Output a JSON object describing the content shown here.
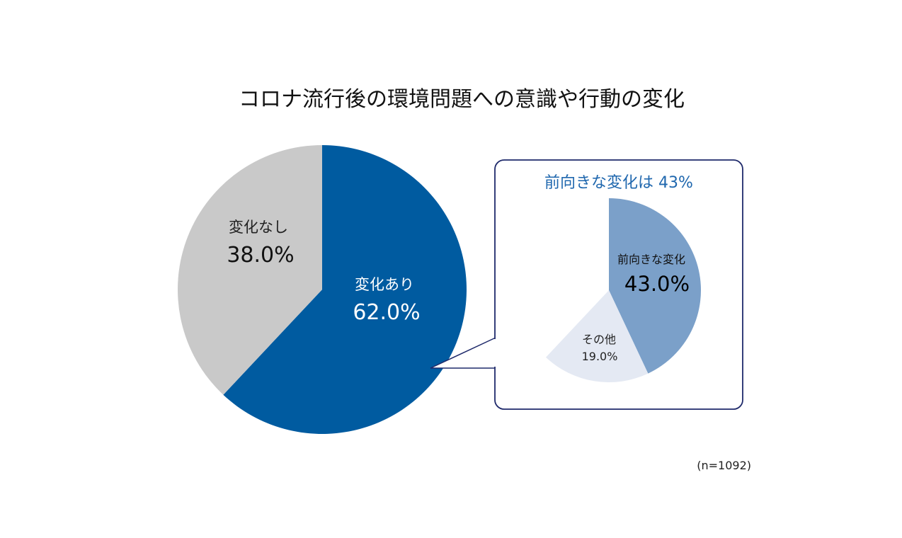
{
  "title": "コロナ流行後の環境問題への意識や行動の変化",
  "note": "(n=1092)",
  "colors": {
    "main_changed": "#005BA0",
    "main_unchanged": "#C9C9C9",
    "sub_positive": "#7BA0C9",
    "sub_other": "#E4E9F3",
    "callout_border": "#1F2A6B",
    "inset_title": "#1F67AE"
  },
  "chart_data": [
    {
      "type": "pie",
      "title": "コロナ流行後の環境問題への意識や行動の変化",
      "slices": [
        {
          "label": "変化あり",
          "value": 62.0,
          "display": "62.0%"
        },
        {
          "label": "変化なし",
          "value": 38.0,
          "display": "38.0%"
        }
      ]
    },
    {
      "type": "pie",
      "title": "前向きな変化は 43%",
      "slices": [
        {
          "label": "前向きな変化",
          "value": 43.0,
          "display": "43.0%"
        },
        {
          "label": "その他",
          "value": 19.0,
          "display": "19.0%"
        }
      ]
    }
  ]
}
